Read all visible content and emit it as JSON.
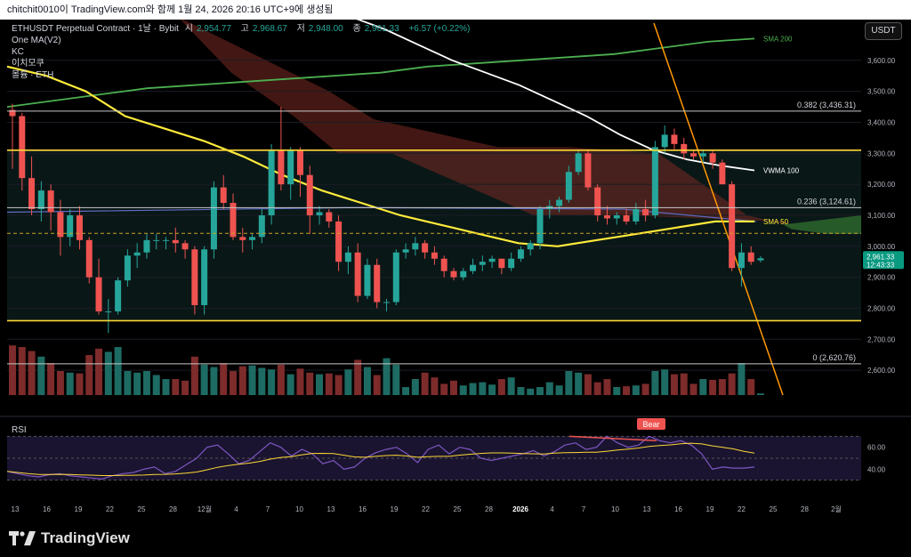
{
  "header": {
    "caption": "chitchit0010이 TradingView.com와 함께 1월 24, 2026 20:16 UTC+9에 생성됨"
  },
  "legend": {
    "symbol": "ETHUSDT Perpetual Contract · 1날 · Bybit",
    "open_label": "시",
    "open": "2,954.77",
    "high_label": "고",
    "high": "2,968.67",
    "low_label": "저",
    "low": "2,948.00",
    "close_label": "종",
    "close": "2,961.33",
    "change": "+6.57 (+0.22%)",
    "indicators": [
      "One MA(V2)",
      "KC",
      "이치모쿠",
      "볼륨 · ETH"
    ]
  },
  "currency_button": "USDT",
  "price_tag": {
    "price": "2,961.33",
    "countdown": "12:43:33"
  },
  "rsi_label": "RSI",
  "bear_label": "Bear",
  "brand": "TradingView",
  "colors": {
    "up": "#26a69a",
    "down": "#ef5350",
    "sma200": "#4caf50",
    "sma50": "#ffeb3b",
    "vwma": "#ffffff",
    "ma_blue": "#5c6bc0",
    "trend": "#ff9800",
    "rsi": "#7e57c2",
    "rsi_ma": "#fdd835",
    "price_tag": "#089981"
  },
  "chart_data": {
    "type": "candlestick",
    "x_ticks": [
      "13",
      "16",
      "19",
      "22",
      "25",
      "28",
      "12월",
      "4",
      "7",
      "10",
      "13",
      "16",
      "19",
      "22",
      "25",
      "28",
      "2026",
      "4",
      "7",
      "10",
      "13",
      "16",
      "19",
      "22",
      "25",
      "28",
      "2월"
    ],
    "y_ticks": [
      2600,
      2700,
      2800,
      2900,
      3000,
      3100,
      3200,
      3300,
      3400,
      3500,
      3600
    ],
    "y_tick_labels": [
      "2,600.00",
      "2,700.00",
      "2,800.00",
      "2,900.00",
      "3,000.00",
      "3,100.00",
      "3,200.00",
      "3,300.00",
      "3,400.00",
      "3,500.00",
      "3,600.00"
    ],
    "ylim": [
      2520,
      3720
    ],
    "candles": [
      [
        3440,
        3460,
        3250,
        3420
      ],
      [
        3420,
        3430,
        3180,
        3220
      ],
      [
        3220,
        3290,
        3100,
        3120
      ],
      [
        3120,
        3210,
        3080,
        3180
      ],
      [
        3180,
        3200,
        3050,
        3110
      ],
      [
        3110,
        3150,
        2970,
        3030
      ],
      [
        3030,
        3120,
        3000,
        3100
      ],
      [
        3100,
        3130,
        2990,
        3020
      ],
      [
        3020,
        3030,
        2880,
        2900
      ],
      [
        2900,
        2960,
        2780,
        2790
      ],
      [
        2790,
        2830,
        2720,
        2790
      ],
      [
        2790,
        2900,
        2780,
        2890
      ],
      [
        2890,
        2990,
        2870,
        2970
      ],
      [
        2970,
        3010,
        2930,
        2980
      ],
      [
        2980,
        3040,
        2960,
        3020
      ],
      [
        3020,
        3040,
        2990,
        3020
      ],
      [
        3020,
        3030,
        2990,
        3020
      ],
      [
        3020,
        3060,
        2980,
        3010
      ],
      [
        3010,
        3020,
        2960,
        2990
      ],
      [
        2990,
        3000,
        2780,
        2810
      ],
      [
        2810,
        3000,
        2780,
        2990
      ],
      [
        2990,
        3210,
        2960,
        3190
      ],
      [
        3190,
        3230,
        3120,
        3140
      ],
      [
        3140,
        3170,
        3020,
        3030
      ],
      [
        3030,
        3060,
        2980,
        3020
      ],
      [
        3020,
        3040,
        2990,
        3030
      ],
      [
        3030,
        3120,
        3010,
        3100
      ],
      [
        3100,
        3330,
        3070,
        3310
      ],
      [
        3310,
        3450,
        3180,
        3200
      ],
      [
        3200,
        3320,
        3150,
        3310
      ],
      [
        3310,
        3320,
        3160,
        3230
      ],
      [
        3230,
        3260,
        3040,
        3100
      ],
      [
        3100,
        3130,
        3070,
        3110
      ],
      [
        3110,
        3120,
        3060,
        3080
      ],
      [
        3080,
        3100,
        2920,
        2950
      ],
      [
        2950,
        3000,
        2910,
        2980
      ],
      [
        2980,
        3010,
        2820,
        2840
      ],
      [
        2840,
        2960,
        2830,
        2940
      ],
      [
        2940,
        2960,
        2800,
        2820
      ],
      [
        2820,
        2830,
        2790,
        2820
      ],
      [
        2820,
        2990,
        2810,
        2980
      ],
      [
        2980,
        3010,
        2960,
        2990
      ],
      [
        2990,
        3030,
        2970,
        3010
      ],
      [
        3010,
        3020,
        2960,
        2980
      ],
      [
        2980,
        3000,
        2940,
        2960
      ],
      [
        2960,
        2970,
        2900,
        2920
      ],
      [
        2920,
        2930,
        2890,
        2900
      ],
      [
        2900,
        2930,
        2890,
        2920
      ],
      [
        2920,
        2960,
        2910,
        2940
      ],
      [
        2940,
        2970,
        2920,
        2950
      ],
      [
        2950,
        2970,
        2930,
        2960
      ],
      [
        2960,
        2960,
        2910,
        2930
      ],
      [
        2930,
        2980,
        2920,
        2960
      ],
      [
        2960,
        3000,
        2950,
        2990
      ],
      [
        2990,
        3020,
        2970,
        3010
      ],
      [
        3010,
        3130,
        2990,
        3120
      ],
      [
        3120,
        3150,
        3090,
        3130
      ],
      [
        3130,
        3160,
        3110,
        3150
      ],
      [
        3150,
        3260,
        3140,
        3240
      ],
      [
        3240,
        3310,
        3230,
        3300
      ],
      [
        3300,
        3310,
        3180,
        3190
      ],
      [
        3190,
        3200,
        3080,
        3100
      ],
      [
        3100,
        3130,
        3070,
        3090
      ],
      [
        3090,
        3110,
        3070,
        3100
      ],
      [
        3100,
        3120,
        3070,
        3080
      ],
      [
        3080,
        3140,
        3070,
        3120
      ],
      [
        3120,
        3150,
        3080,
        3100
      ],
      [
        3100,
        3340,
        3090,
        3320
      ],
      [
        3320,
        3390,
        3300,
        3360
      ],
      [
        3360,
        3380,
        3310,
        3330
      ],
      [
        3330,
        3350,
        3280,
        3300
      ],
      [
        3300,
        3310,
        3280,
        3290
      ],
      [
        3290,
        3310,
        3270,
        3300
      ],
      [
        3300,
        3310,
        3250,
        3270
      ],
      [
        3270,
        3280,
        3200,
        3200
      ],
      [
        3200,
        3210,
        2920,
        2930
      ],
      [
        2930,
        3010,
        2870,
        2980
      ],
      [
        2980,
        3000,
        2940,
        2950
      ],
      [
        2954.77,
        2968.67,
        2948,
        2961.33
      ]
    ],
    "series": [
      {
        "name": "SMA 200",
        "values": [
          3450,
          3470,
          3490,
          3510,
          3520,
          3530,
          3540,
          3550,
          3560,
          3580,
          3590,
          3600,
          3610,
          3620,
          3640,
          3660,
          3670
        ]
      },
      {
        "name": "VWMA 100",
        "values": [
          3740,
          3700,
          3650,
          3600,
          3560,
          3520,
          3470,
          3420,
          3360,
          3310,
          3280,
          3260,
          3245
        ]
      },
      {
        "name": "SMA 50",
        "values": [
          3580,
          3550,
          3500,
          3420,
          3380,
          3340,
          3290,
          3230,
          3180,
          3140,
          3100,
          3070,
          3040,
          3010,
          3000,
          3020,
          3040,
          3060,
          3080,
          3080
        ]
      }
    ],
    "volume": [
      0.62,
      0.6,
      0.55,
      0.48,
      0.4,
      0.3,
      0.28,
      0.27,
      0.5,
      0.58,
      0.54,
      0.6,
      0.3,
      0.28,
      0.3,
      0.25,
      0.2,
      0.2,
      0.18,
      0.48,
      0.38,
      0.35,
      0.4,
      0.3,
      0.36,
      0.37,
      0.34,
      0.32,
      0.38,
      0.26,
      0.33,
      0.28,
      0.26,
      0.27,
      0.25,
      0.32,
      0.44,
      0.35,
      0.25,
      0.46,
      0.38,
      0.1,
      0.2,
      0.28,
      0.22,
      0.14,
      0.18,
      0.12,
      0.15,
      0.16,
      0.13,
      0.2,
      0.22,
      0.1,
      0.08,
      0.1,
      0.16,
      0.12,
      0.3,
      0.28,
      0.26,
      0.16,
      0.2,
      0.1,
      0.11,
      0.12,
      0.14,
      0.3,
      0.32,
      0.26,
      0.27,
      0.14,
      0.2,
      0.19,
      0.2,
      0.27,
      0.4,
      0.2,
      0.02
    ],
    "levels": [
      {
        "label": "0.382 (3,436.31)",
        "value": 3436.31
      },
      {
        "label": "0.236 (3,124.61)",
        "value": 3124.61
      },
      {
        "label": "0 (2,620.76)",
        "value": 2620.76
      }
    ],
    "horizontal_lines": [
      3310,
      2760
    ],
    "rsi": {
      "y_ticks": [
        40,
        60
      ],
      "values": [
        38,
        36,
        34,
        33,
        35,
        36,
        34,
        33,
        32,
        31,
        34,
        36,
        37,
        40,
        42,
        36,
        38,
        44,
        50,
        60,
        62,
        54,
        45,
        48,
        56,
        64,
        60,
        52,
        58,
        54,
        45,
        48,
        40,
        42,
        50,
        55,
        58,
        60,
        54,
        46,
        58,
        62,
        54,
        60,
        58,
        50,
        48,
        50,
        52,
        54,
        57,
        52,
        56,
        62,
        64,
        58,
        60,
        70,
        64,
        60,
        62,
        70,
        66,
        64,
        66,
        62,
        54,
        40,
        42,
        41,
        41,
        42
      ]
    }
  }
}
